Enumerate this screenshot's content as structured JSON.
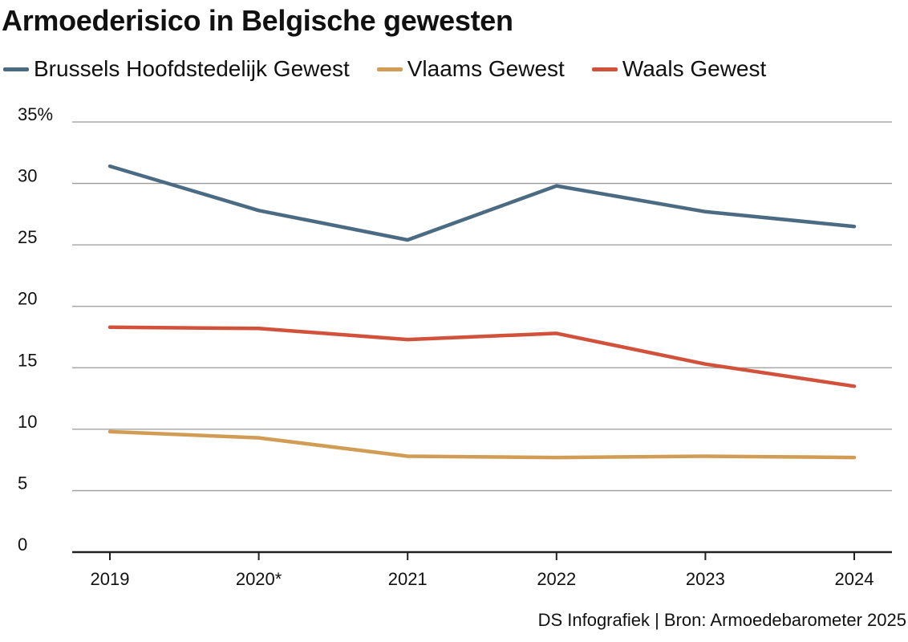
{
  "title": "Armoederisico in Belgische gewesten",
  "source": "DS Infografiek | Bron: Armoedebarometer 2025",
  "colors": {
    "brussels": "#4a6b82",
    "vlaams": "#d19d55",
    "waals": "#d1513a",
    "gridline": "#9a9a9a",
    "axis": "#222222"
  },
  "chart_data": {
    "type": "line",
    "title": "Armoederisico in Belgische gewesten",
    "categories": [
      "2019",
      "2020*",
      "2021",
      "2022",
      "2023",
      "2024"
    ],
    "y_tick_labels": [
      "35%",
      "30",
      "25",
      "20",
      "15",
      "10",
      "5",
      "0"
    ],
    "y_ticks": [
      35,
      30,
      25,
      20,
      15,
      10,
      5,
      0
    ],
    "ylim": [
      0,
      35
    ],
    "grid": true,
    "legend_position": "top-left",
    "series": [
      {
        "name": "Brussels Hoofdstedelijk Gewest",
        "color": "#4a6b82",
        "values": [
          31.4,
          27.8,
          25.4,
          29.8,
          27.7,
          26.5
        ]
      },
      {
        "name": "Vlaams Gewest",
        "color": "#d19d55",
        "values": [
          9.8,
          9.3,
          7.8,
          7.7,
          7.8,
          7.7
        ]
      },
      {
        "name": "Waals Gewest",
        "color": "#d1513a",
        "values": [
          18.3,
          18.2,
          17.3,
          17.8,
          15.3,
          13.5
        ]
      }
    ]
  }
}
